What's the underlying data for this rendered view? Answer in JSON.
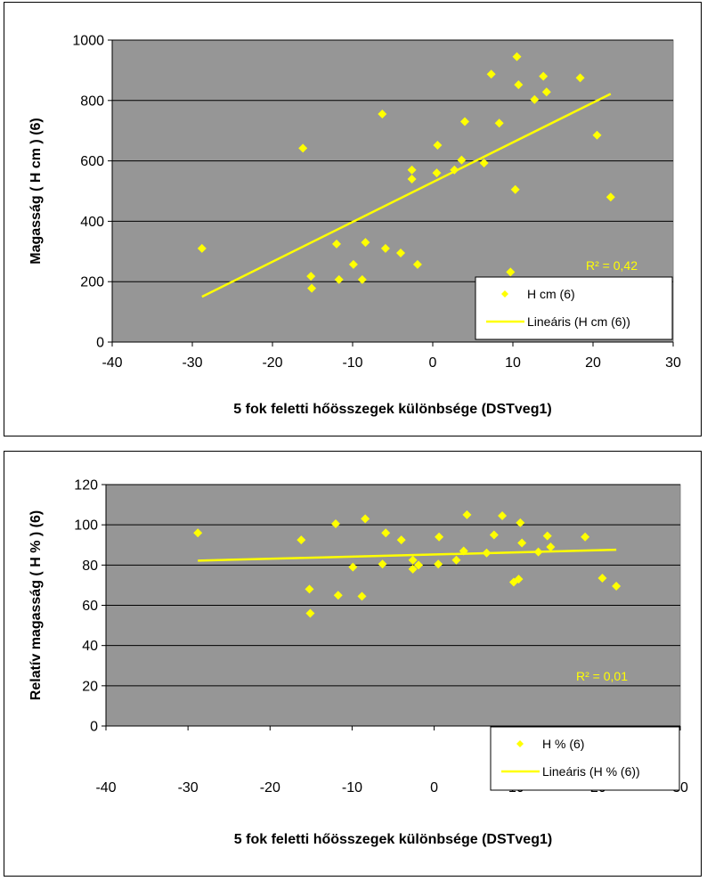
{
  "chart_data": [
    {
      "type": "scatter",
      "xlabel": "5 fok feletti hőösszegek különbsége (DSTveg1)",
      "ylabel": "Magasság ( H cm ) (6)",
      "xlim": [
        -40,
        30
      ],
      "ylim": [
        0,
        1000
      ],
      "xticks": [
        "-40",
        "-30",
        "-20",
        "-10",
        "0",
        "10",
        "20",
        "30"
      ],
      "yticks": [
        "0",
        "200",
        "400",
        "600",
        "800",
        "1000"
      ],
      "grid": "horizontal",
      "background_color": "#969696",
      "point_color": "#ffff00",
      "series": [
        {
          "name": "H cm  (6)",
          "marker": "diamond",
          "points": [
            [
              -28.8,
              310
            ],
            [
              -16.2,
              642
            ],
            [
              -15.2,
              218
            ],
            [
              -15.1,
              178
            ],
            [
              -12,
              325
            ],
            [
              -11.7,
              207
            ],
            [
              -9.9,
              257
            ],
            [
              -8.8,
              207
            ],
            [
              -8.4,
              330
            ],
            [
              -6.3,
              755
            ],
            [
              -5.9,
              310
            ],
            [
              -4,
              295
            ],
            [
              -2.6,
              570
            ],
            [
              -2.6,
              540
            ],
            [
              -1.9,
              257
            ],
            [
              0.5,
              560
            ],
            [
              0.6,
              652
            ],
            [
              2.7,
              570
            ],
            [
              3.6,
              603
            ],
            [
              4,
              730
            ],
            [
              6.4,
              593
            ],
            [
              7.3,
              887
            ],
            [
              8.3,
              725
            ],
            [
              9.7,
              232
            ],
            [
              10.3,
              505
            ],
            [
              10.5,
              945
            ],
            [
              10.7,
              852
            ],
            [
              12.7,
              803
            ],
            [
              13.8,
              880
            ],
            [
              14.2,
              828
            ],
            [
              18.4,
              875
            ],
            [
              20.5,
              685
            ],
            [
              22.2,
              480
            ]
          ]
        },
        {
          "name": "Lineáris (H cm  (6))",
          "type": "line",
          "points": [
            [
              -28.8,
              150
            ],
            [
              22.2,
              822
            ]
          ]
        }
      ],
      "annotation": "R² = 0,42",
      "legend_position": "bottom-right"
    },
    {
      "type": "scatter",
      "xlabel": "5 fok feletti hőösszegek különbsége (DSTveg1)",
      "ylabel": "Relatív magasság ( H % )  (6)",
      "xlim": [
        -40,
        30
      ],
      "ylim": [
        0,
        120
      ],
      "xticks": [
        "-40",
        "-30",
        "-20",
        "-10",
        "0",
        "10",
        "20",
        "30"
      ],
      "yticks": [
        "0",
        "20",
        "40",
        "60",
        "80",
        "100",
        "120"
      ],
      "grid": "horizontal",
      "background_color": "#969696",
      "point_color": "#ffff00",
      "series": [
        {
          "name": "H %  (6)",
          "marker": "diamond",
          "points": [
            [
              -28.8,
              96
            ],
            [
              -16.2,
              92.5
            ],
            [
              -15.2,
              68
            ],
            [
              -15.1,
              56
            ],
            [
              -12,
              100.5
            ],
            [
              -11.7,
              65
            ],
            [
              -9.9,
              79
            ],
            [
              -8.8,
              64.5
            ],
            [
              -8.4,
              103
            ],
            [
              -6.3,
              80.5
            ],
            [
              -5.9,
              96
            ],
            [
              -4,
              92.5
            ],
            [
              -2.6,
              82.5
            ],
            [
              -2.6,
              78
            ],
            [
              -1.9,
              80
            ],
            [
              0.5,
              80.5
            ],
            [
              0.6,
              94
            ],
            [
              2.7,
              82.5
            ],
            [
              3.6,
              87
            ],
            [
              4,
              105
            ],
            [
              6.4,
              86
            ],
            [
              7.3,
              95
            ],
            [
              8.3,
              104.5
            ],
            [
              9.7,
              71.5
            ],
            [
              10.3,
              73
            ],
            [
              10.5,
              101
            ],
            [
              10.7,
              91
            ],
            [
              12.7,
              86.5
            ],
            [
              13.8,
              94.5
            ],
            [
              14.2,
              89
            ],
            [
              18.4,
              94
            ],
            [
              20.5,
              73.5
            ],
            [
              22.2,
              69.5
            ]
          ]
        },
        {
          "name": "Lineáris (H %  (6))",
          "type": "line",
          "points": [
            [
              -28.8,
              82.2
            ],
            [
              22.2,
              87.6
            ]
          ]
        }
      ],
      "annotation": "R² = 0,01",
      "legend_position": "bottom-right"
    }
  ]
}
